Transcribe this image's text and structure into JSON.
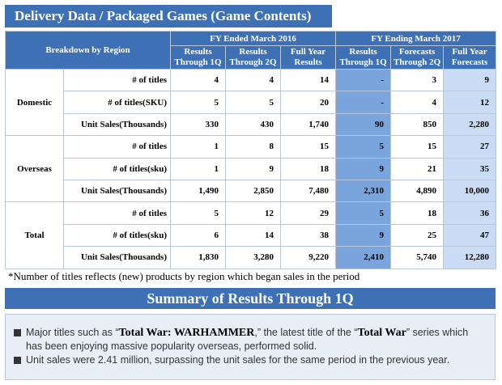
{
  "title": "Delivery Data /  Packaged Games (Game Contents)",
  "table": {
    "breakdown_label": "Breakdown by Region",
    "fy2016_label": "FY Ended March 2016",
    "fy2017_label": "FY Ending March 2017",
    "col_heads": [
      "Results Through 1Q",
      "Results Through 2Q",
      "Full Year Results",
      "Results Through 1Q",
      "Forecasts Through 2Q",
      "Full Year Forecasts"
    ],
    "regions": [
      {
        "name": "Domestic",
        "rows": [
          {
            "metric": "# of titles",
            "v": [
              "4",
              "4",
              "14",
              "-",
              "3",
              "9"
            ]
          },
          {
            "metric": "# of titles(SKU)",
            "v": [
              "5",
              "5",
              "20",
              "-",
              "4",
              "12"
            ]
          },
          {
            "metric": "Unit Sales(Thousands)",
            "v": [
              "330",
              "430",
              "1,740",
              "90",
              "850",
              "2,280"
            ]
          }
        ]
      },
      {
        "name": "Overseas",
        "rows": [
          {
            "metric": "# of titles",
            "v": [
              "1",
              "8",
              "15",
              "5",
              "15",
              "27"
            ]
          },
          {
            "metric": "# of titles(sku)",
            "v": [
              "1",
              "9",
              "18",
              "9",
              "21",
              "35"
            ]
          },
          {
            "metric": "Unit Sales(Thousands)",
            "v": [
              "1,490",
              "2,850",
              "7,480",
              "2,310",
              "4,890",
              "10,000"
            ]
          }
        ]
      },
      {
        "name": "Total",
        "rows": [
          {
            "metric": "# of titles",
            "v": [
              "5",
              "12",
              "29",
              "5",
              "18",
              "36"
            ]
          },
          {
            "metric": "# of titles(sku)",
            "v": [
              "6",
              "14",
              "38",
              "9",
              "25",
              "47"
            ]
          },
          {
            "metric": "Unit Sales(Thousands)",
            "v": [
              "1,830",
              "3,280",
              "9,220",
              "2,410",
              "5,740",
              "12,280"
            ]
          }
        ]
      }
    ]
  },
  "note": "*Number of titles reflects (new) products by region which began sales in the period",
  "summary_title": "Summary of Results Through 1Q",
  "summary": {
    "b1_pre": "Major titles such as “",
    "b1_bold1": "Total War: WARHAMMER",
    "b1_mid": ",” the latest title of the “",
    "b1_bold2": "Total War",
    "b1_post": "” series which has been enjoying massive popularity overseas, performed solid.",
    "b2": "Unit sales were 2.41 million, surpassing the unit sales for the same period in the previous year."
  },
  "colors": {
    "header_blue": "#3d70b4",
    "results_blue": "#7aa5dc",
    "forecast_light": "#c9dcf4"
  }
}
